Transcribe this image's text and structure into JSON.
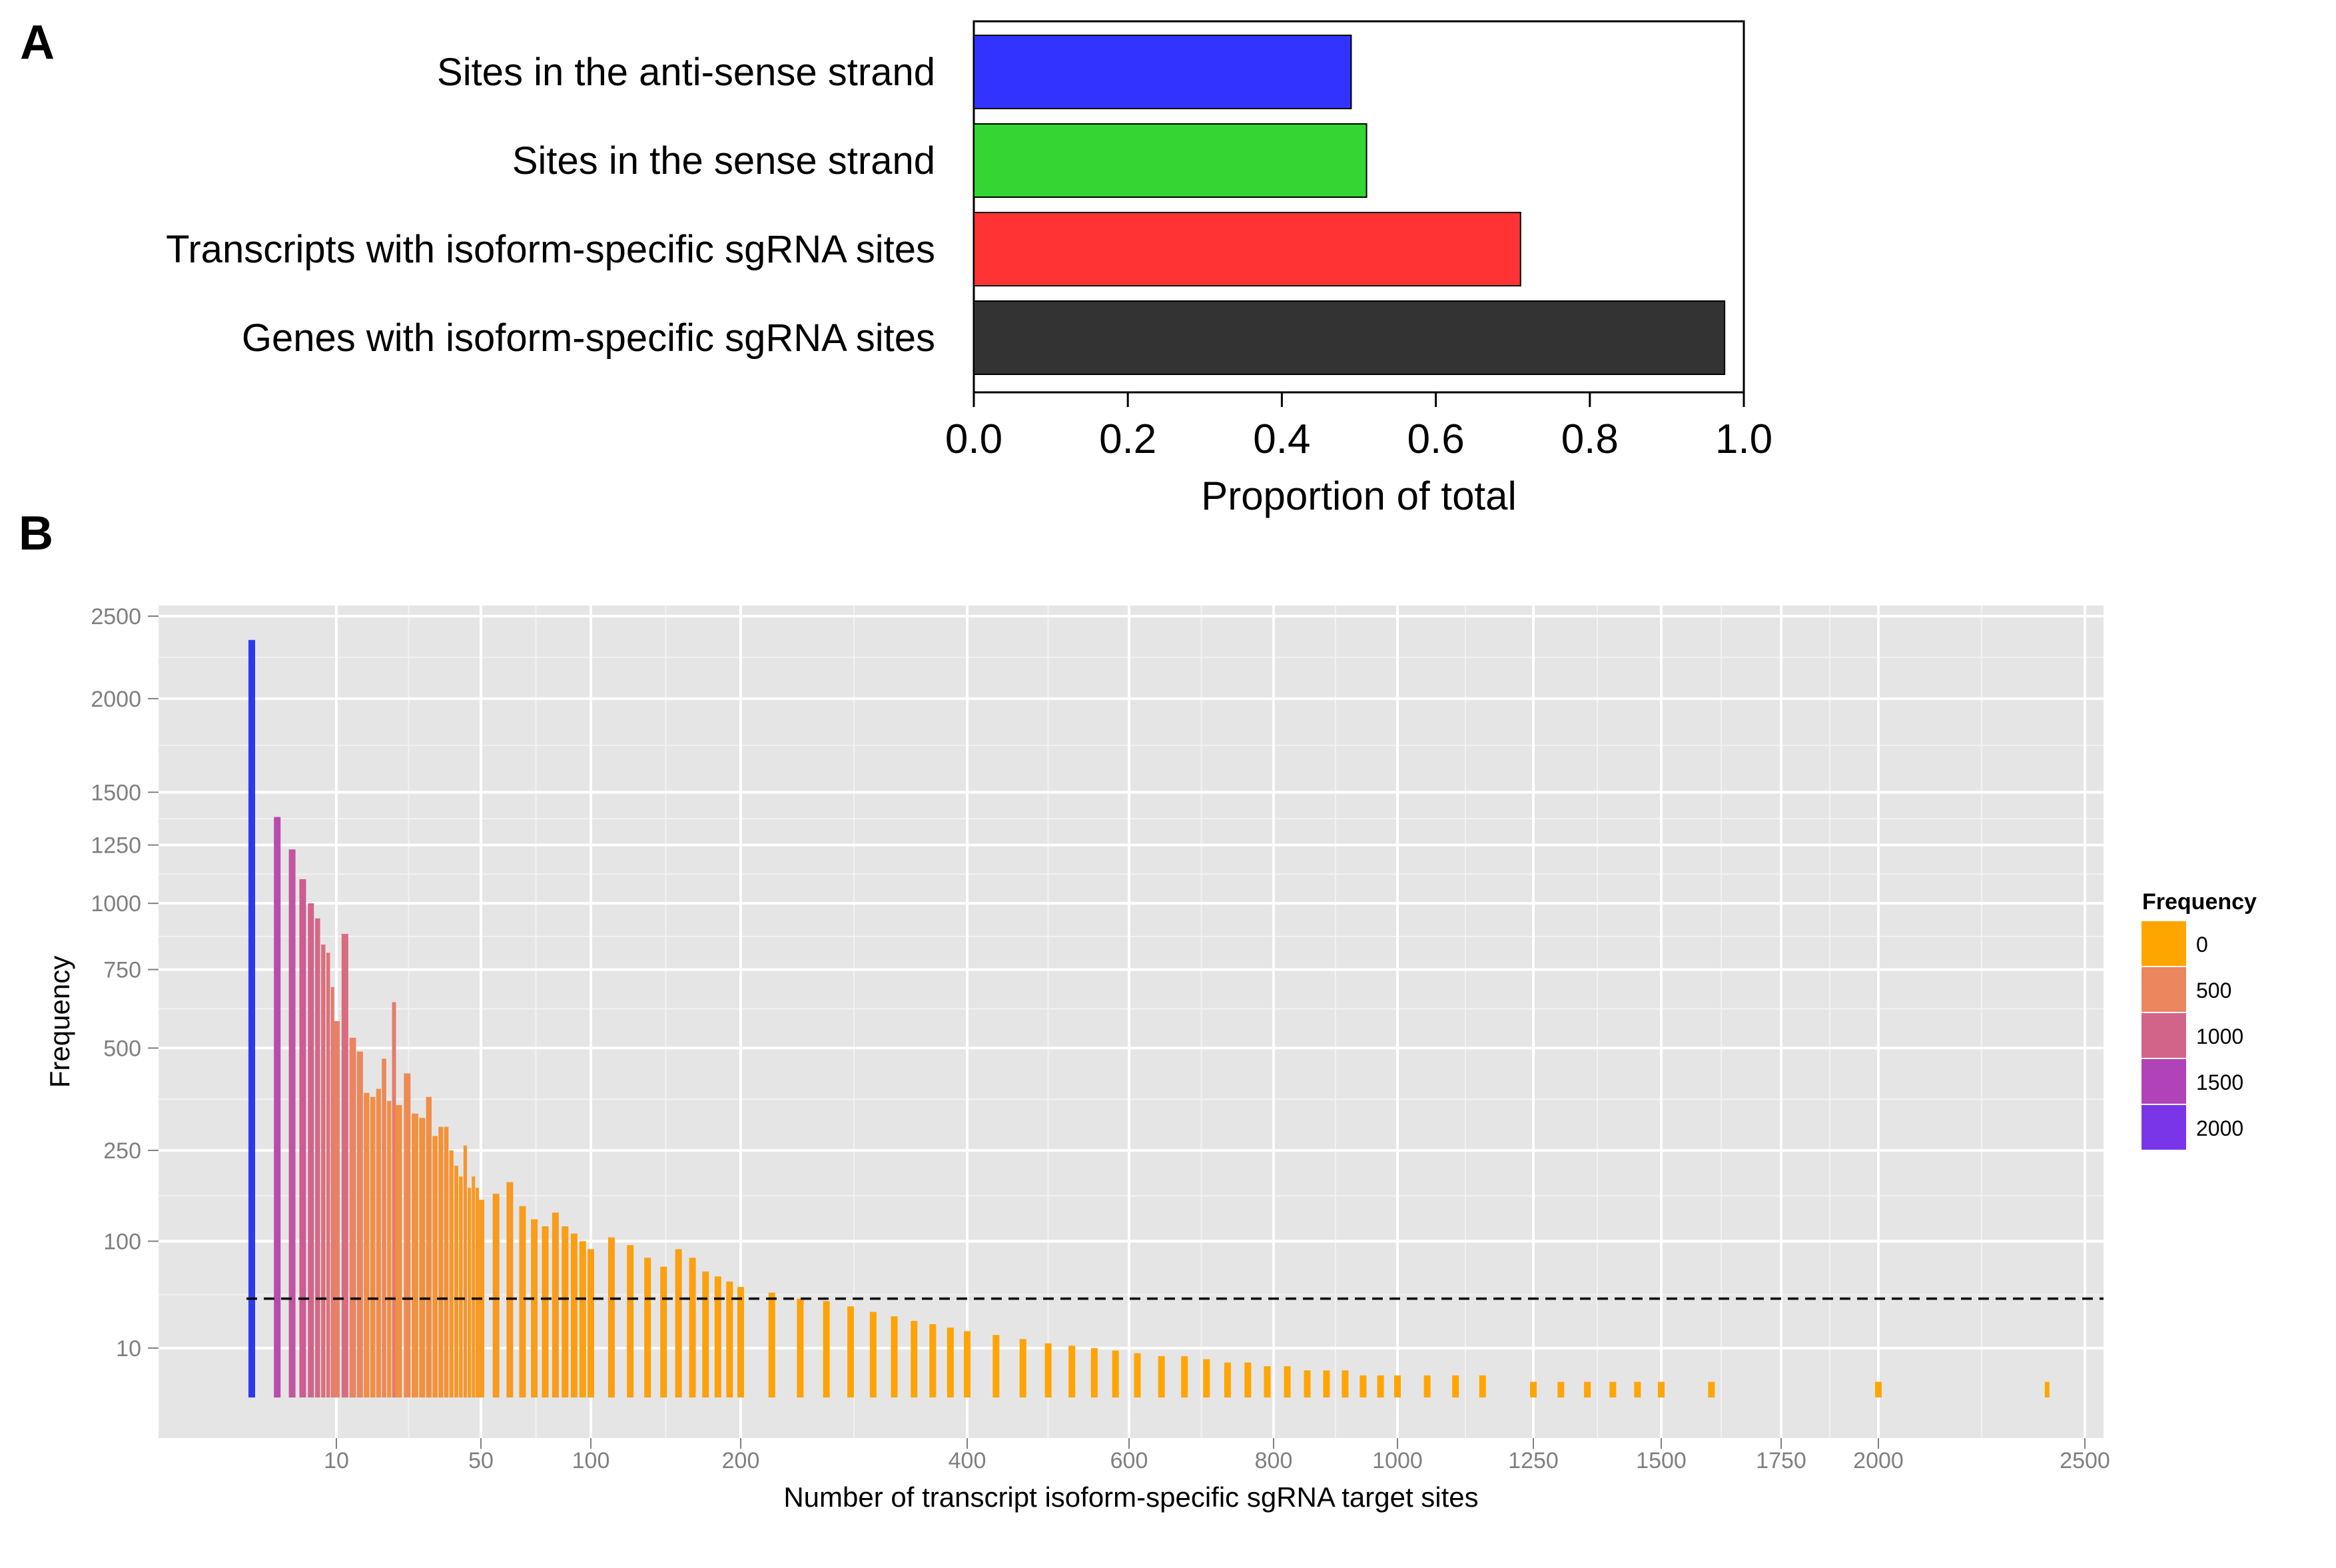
{
  "panels": {
    "a": "A",
    "b": "B"
  },
  "chart_data": [
    {
      "type": "bar",
      "orientation": "horizontal",
      "categories": [
        "Sites in the anti-sense strand",
        "Sites in the sense strand",
        "Transcripts with isoform-specific sgRNA sites",
        "Genes with isoform-specific sgRNA sites"
      ],
      "values": [
        0.49,
        0.51,
        0.71,
        0.975
      ],
      "colors": [
        "#3333ff",
        "#33d633",
        "#ff3333",
        "#333333"
      ],
      "title": "",
      "xlabel": "Proportion of total",
      "ylabel": "",
      "xlim": [
        0,
        1
      ],
      "xticks": [
        0.0,
        0.2,
        0.4,
        0.6,
        0.8,
        1.0
      ],
      "xtick_labels": [
        "0.0",
        "0.2",
        "0.4",
        "0.6",
        "0.8",
        "1.0"
      ],
      "grid": false
    },
    {
      "type": "bar",
      "subtype": "histogram",
      "title": "",
      "xlabel": "Number of transcript isoform-specific sgRNA target sites",
      "ylabel": "Frequency",
      "x_scale": "log",
      "y_scale": "sqrt",
      "xticks": [
        10,
        50,
        100,
        200,
        400,
        600,
        800,
        1000,
        1250,
        1500,
        1750,
        2000,
        2500
      ],
      "yticks": [
        10,
        100,
        250,
        500,
        750,
        1000,
        1250,
        1500,
        2000,
        2500
      ],
      "x": [
        1,
        2,
        3,
        4,
        5,
        6,
        7,
        8,
        9,
        10,
        11,
        12,
        13,
        14,
        15,
        16,
        17,
        18,
        19,
        20,
        22,
        24,
        26,
        28,
        30,
        32,
        34,
        36,
        38,
        40,
        42,
        44,
        46,
        48,
        50,
        55,
        60,
        65,
        70,
        75,
        80,
        85,
        90,
        95,
        100,
        110,
        120,
        130,
        140,
        150,
        160,
        170,
        180,
        190,
        200,
        220,
        240,
        260,
        280,
        300,
        320,
        340,
        360,
        380,
        400,
        430,
        460,
        490,
        520,
        550,
        580,
        610,
        640,
        670,
        700,
        730,
        760,
        790,
        820,
        850,
        880,
        910,
        940,
        970,
        1000,
        1050,
        1100,
        1150,
        1250,
        1300,
        1350,
        1400,
        1450,
        1500,
        1600,
        2000,
        2400
      ],
      "values": [
        2350,
        1380,
        1230,
        1100,
        1000,
        940,
        840,
        810,
        690,
        580,
        880,
        530,
        490,
        380,
        370,
        390,
        470,
        360,
        640,
        350,
        430,
        330,
        320,
        370,
        280,
        300,
        300,
        250,
        220,
        200,
        260,
        180,
        200,
        180,
        160,
        170,
        190,
        150,
        130,
        120,
        140,
        120,
        110,
        100,
        90,
        105,
        95,
        80,
        70,
        90,
        80,
        65,
        60,
        55,
        50,
        45,
        40,
        38,
        34,
        30,
        27,
        24,
        22,
        20,
        18,
        16,
        14,
        12,
        11,
        10,
        9,
        8,
        7,
        7,
        6,
        5,
        5,
        4,
        4,
        3,
        3,
        3,
        2,
        2,
        2,
        2,
        2,
        2,
        1,
        1,
        1,
        1,
        1,
        1,
        1,
        1,
        1
      ],
      "threshold_line": 40,
      "legend": {
        "title": "Frequency",
        "labels": [
          "0",
          "500",
          "1000",
          "1500",
          "2000"
        ],
        "colors": [
          "#ffa500",
          "#eb865f",
          "#d2648a",
          "#b043b8",
          "#7b35e8"
        ],
        "position": "right"
      },
      "grid": true
    }
  ]
}
